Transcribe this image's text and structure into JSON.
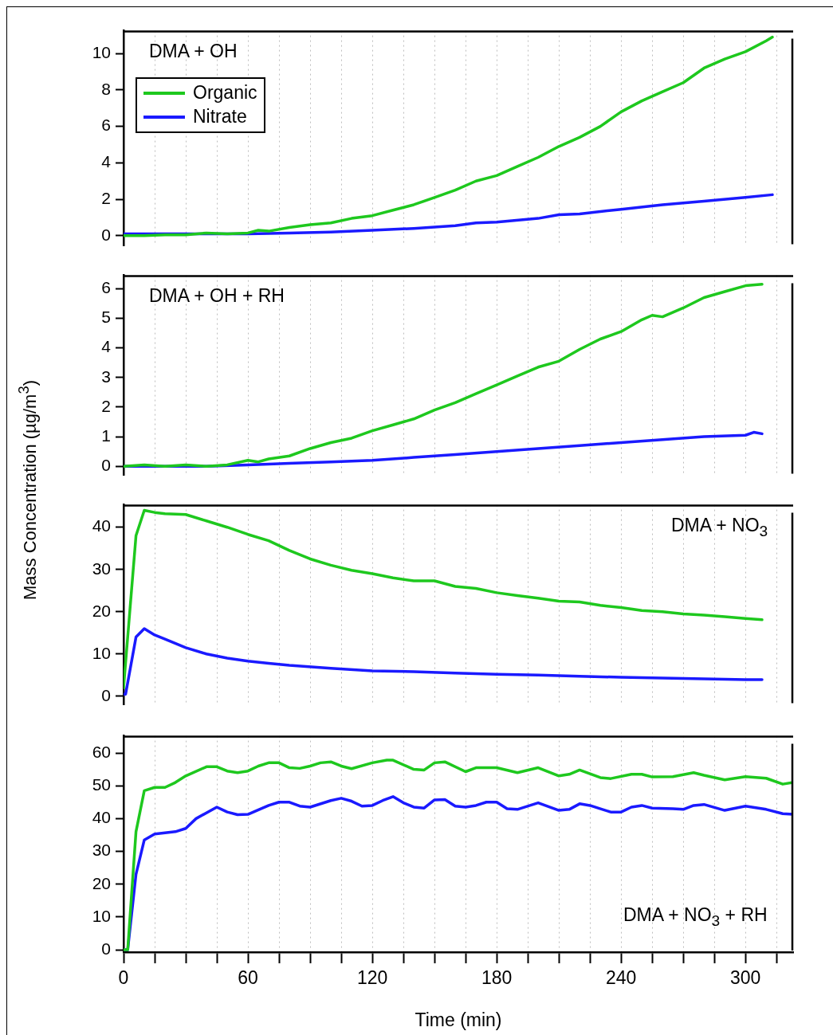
{
  "chart_data": [
    {
      "type": "line",
      "annotations": [
        "DMA + OH"
      ],
      "legend": "top left",
      "grid": "x",
      "tick_labels": "y",
      "xlim": [
        0,
        323
      ],
      "ylim": [
        -0.55,
        11.25
      ],
      "yticks": [
        0,
        2,
        4,
        6,
        8,
        10
      ],
      "xticks": [
        0,
        {
          "value": 15,
          "label": null
        },
        {
          "value": 30,
          "label": null
        },
        {
          "value": 45,
          "label": null
        },
        60,
        {
          "value": 75,
          "label": null
        },
        {
          "value": 90,
          "label": null
        },
        {
          "value": 105,
          "label": null
        },
        120,
        {
          "value": 135,
          "label": null
        },
        {
          "value": 150,
          "label": null
        },
        {
          "value": 165,
          "label": null
        },
        180,
        {
          "value": 195,
          "label": null
        },
        {
          "value": 210,
          "label": null
        },
        {
          "value": 225,
          "label": null
        },
        240,
        {
          "value": 255,
          "label": null
        },
        {
          "value": 270,
          "label": null
        },
        {
          "value": 285,
          "label": null
        },
        300,
        {
          "value": 315,
          "label": null
        }
      ],
      "series": [
        {
          "name": "Organic",
          "color": "#1ec81e",
          "x": [
            0,
            10,
            20,
            30,
            40,
            50,
            60,
            65,
            70,
            80,
            90,
            100,
            110,
            120,
            130,
            140,
            150,
            160,
            170,
            180,
            190,
            200,
            210,
            220,
            230,
            240,
            250,
            260,
            270,
            280,
            290,
            300,
            310,
            313
          ],
          "values": [
            0,
            0,
            0.05,
            0.05,
            0.15,
            0.1,
            0.15,
            0.3,
            0.25,
            0.45,
            0.6,
            0.7,
            0.95,
            1.1,
            1.4,
            1.7,
            2.1,
            2.5,
            3.0,
            3.3,
            3.8,
            4.3,
            4.9,
            5.4,
            6.0,
            6.8,
            7.4,
            7.9,
            8.4,
            9.2,
            9.7,
            10.1,
            10.7,
            10.9
          ]
        },
        {
          "name": "Nitrate",
          "color": "#1a1aff",
          "x": [
            0,
            40,
            60,
            80,
            100,
            120,
            140,
            160,
            170,
            180,
            200,
            210,
            220,
            240,
            260,
            280,
            300,
            313
          ],
          "values": [
            0.1,
            0.1,
            0.1,
            0.15,
            0.2,
            0.3,
            0.4,
            0.55,
            0.7,
            0.75,
            0.95,
            1.15,
            1.2,
            1.45,
            1.7,
            1.9,
            2.1,
            2.25
          ]
        }
      ]
    },
    {
      "type": "line",
      "annotations": [
        "DMA + OH + RH"
      ],
      "grid": "x",
      "tick_labels": "y",
      "ylabel": "Mass Concentration (µg/m$^{3}$)",
      "xlim": [
        0,
        323
      ],
      "ylim": [
        -0.3,
        6.45
      ],
      "yticks": [
        0,
        1,
        2,
        3,
        4,
        5,
        6
      ],
      "xticks": [
        0,
        {
          "value": 15,
          "label": null
        },
        {
          "value": 30,
          "label": null
        },
        {
          "value": 45,
          "label": null
        },
        60,
        {
          "value": 75,
          "label": null
        },
        {
          "value": 90,
          "label": null
        },
        {
          "value": 105,
          "label": null
        },
        120,
        {
          "value": 135,
          "label": null
        },
        {
          "value": 150,
          "label": null
        },
        {
          "value": 165,
          "label": null
        },
        180,
        {
          "value": 195,
          "label": null
        },
        {
          "value": 210,
          "label": null
        },
        {
          "value": 225,
          "label": null
        },
        240,
        {
          "value": 255,
          "label": null
        },
        {
          "value": 270,
          "label": null
        },
        {
          "value": 285,
          "label": null
        },
        300,
        {
          "value": 315,
          "label": null
        }
      ],
      "series": [
        {
          "color": "#1ec81e",
          "x": [
            0,
            10,
            20,
            30,
            40,
            50,
            60,
            65,
            70,
            80,
            90,
            100,
            110,
            120,
            130,
            140,
            150,
            160,
            170,
            180,
            190,
            200,
            210,
            220,
            230,
            240,
            250,
            255,
            260,
            270,
            280,
            290,
            300,
            308
          ],
          "values": [
            0,
            0.05,
            0,
            0.05,
            0,
            0.05,
            0.2,
            0.15,
            0.25,
            0.35,
            0.6,
            0.8,
            0.95,
            1.2,
            1.4,
            1.6,
            1.9,
            2.15,
            2.45,
            2.75,
            3.05,
            3.35,
            3.55,
            3.95,
            4.3,
            4.55,
            4.95,
            5.1,
            5.05,
            5.35,
            5.7,
            5.9,
            6.1,
            6.15
          ]
        },
        {
          "color": "#1a1aff",
          "x": [
            0,
            40,
            60,
            80,
            100,
            120,
            140,
            160,
            180,
            200,
            220,
            240,
            260,
            280,
            300,
            304,
            308
          ],
          "values": [
            0,
            0,
            0.05,
            0.1,
            0.15,
            0.2,
            0.3,
            0.4,
            0.5,
            0.6,
            0.7,
            0.8,
            0.9,
            1.0,
            1.05,
            1.15,
            1.1
          ]
        }
      ]
    },
    {
      "type": "line",
      "annotations": [
        "DMA + NO$_{3}$"
      ],
      "grid": "x",
      "tick_labels": "y",
      "xlim": [
        0,
        323
      ],
      "ylim": [
        -2,
        45.3
      ],
      "yticks": [
        0,
        10,
        20,
        30,
        40
      ],
      "xticks": [
        0,
        {
          "value": 15,
          "label": null
        },
        {
          "value": 30,
          "label": null
        },
        {
          "value": 45,
          "label": null
        },
        60,
        {
          "value": 75,
          "label": null
        },
        {
          "value": 90,
          "label": null
        },
        {
          "value": 105,
          "label": null
        },
        120,
        {
          "value": 135,
          "label": null
        },
        {
          "value": 150,
          "label": null
        },
        {
          "value": 165,
          "label": null
        },
        180,
        {
          "value": 195,
          "label": null
        },
        {
          "value": 210,
          "label": null
        },
        {
          "value": 225,
          "label": null
        },
        240,
        {
          "value": 255,
          "label": null
        },
        {
          "value": 270,
          "label": null
        },
        {
          "value": 285,
          "label": null
        },
        300,
        {
          "value": 315,
          "label": null
        }
      ],
      "series": [
        {
          "color": "#1ec81e",
          "x": [
            0,
            6,
            10,
            15,
            20,
            30,
            40,
            50,
            60,
            70,
            80,
            90,
            100,
            110,
            120,
            130,
            140,
            150,
            160,
            170,
            180,
            190,
            200,
            210,
            220,
            230,
            240,
            250,
            260,
            270,
            280,
            290,
            300,
            308
          ],
          "values": [
            2,
            38,
            44,
            43.5,
            43.2,
            43,
            41.5,
            40,
            38.3,
            36.8,
            34.5,
            32.5,
            31,
            29.8,
            29,
            28,
            27.3,
            27.3,
            26,
            25.5,
            24.5,
            23.8,
            23.2,
            22.5,
            22.3,
            21.5,
            21,
            20.3,
            20,
            19.5,
            19.2,
            18.8,
            18.4,
            18.1
          ]
        },
        {
          "color": "#1a1aff",
          "x": [
            0,
            1,
            6,
            10,
            15,
            20,
            30,
            40,
            50,
            60,
            70,
            80,
            100,
            120,
            140,
            160,
            180,
            200,
            220,
            240,
            260,
            280,
            300,
            308
          ],
          "values": [
            0.5,
            0.5,
            14,
            16,
            14.5,
            13.5,
            11.5,
            10,
            9,
            8.3,
            7.8,
            7.3,
            6.6,
            6,
            5.8,
            5.5,
            5.2,
            5,
            4.7,
            4.5,
            4.3,
            4.1,
            3.9,
            3.9
          ]
        }
      ]
    },
    {
      "type": "line",
      "annotations": [
        "DMA + NO$_{3}$ + RH"
      ],
      "grid": "x",
      "xlabel": "Time (min)",
      "xlim": [
        0,
        323
      ],
      "ylim": [
        -0.7,
        65.2
      ],
      "yticks": [
        0,
        10,
        20,
        30,
        40,
        50,
        60
      ],
      "xticks": [
        0,
        {
          "value": 15,
          "label": null
        },
        {
          "value": 30,
          "label": null
        },
        {
          "value": 45,
          "label": null
        },
        60,
        {
          "value": 75,
          "label": null
        },
        {
          "value": 90,
          "label": null
        },
        {
          "value": 105,
          "label": null
        },
        120,
        {
          "value": 135,
          "label": null
        },
        {
          "value": 150,
          "label": null
        },
        {
          "value": 165,
          "label": null
        },
        180,
        {
          "value": 195,
          "label": null
        },
        {
          "value": 210,
          "label": null
        },
        {
          "value": 225,
          "label": null
        },
        240,
        {
          "value": 255,
          "label": null
        },
        {
          "value": 270,
          "label": null
        },
        {
          "value": 285,
          "label": null
        },
        300,
        {
          "value": 315,
          "label": null
        }
      ],
      "series": [
        {
          "color": "#1ec81e",
          "x": [
            0,
            2,
            6,
            10,
            15,
            20,
            25,
            30,
            40,
            45,
            50,
            55,
            60,
            65,
            70,
            75,
            80,
            85,
            90,
            95,
            100,
            105,
            110,
            120,
            127,
            130,
            140,
            145,
            150,
            155,
            165,
            170,
            180,
            190,
            200,
            210,
            215,
            220,
            230,
            235,
            245,
            250,
            255,
            265,
            275,
            280,
            290,
            300,
            310,
            318,
            323
          ],
          "values": [
            0,
            0,
            36,
            48.5,
            49.5,
            49.5,
            51,
            53,
            55.8,
            55.8,
            54.5,
            54,
            54.5,
            56,
            57,
            57,
            55.5,
            55.3,
            56,
            57,
            57.3,
            56,
            55.2,
            57,
            57.8,
            57.8,
            55,
            54.8,
            57,
            57.3,
            54.3,
            55.5,
            55.5,
            54,
            55.5,
            53,
            53.5,
            54.8,
            52.5,
            52.2,
            53.5,
            53.5,
            52.7,
            52.8,
            54,
            53.2,
            51.8,
            52.8,
            52.3,
            50.5,
            51
          ]
        },
        {
          "color": "#1a1aff",
          "x": [
            0,
            2,
            6,
            10,
            15,
            25,
            30,
            35,
            45,
            50,
            55,
            60,
            70,
            75,
            80,
            85,
            90,
            100,
            105,
            110,
            115,
            120,
            125,
            130,
            135,
            140,
            145,
            150,
            155,
            160,
            165,
            170,
            175,
            180,
            185,
            190,
            200,
            210,
            215,
            220,
            225,
            235,
            240,
            245,
            250,
            255,
            265,
            270,
            275,
            280,
            290,
            300,
            310,
            318,
            323
          ],
          "values": [
            0,
            0,
            23,
            33.5,
            35.3,
            36,
            37,
            40,
            43.5,
            42,
            41.2,
            41.3,
            44,
            45,
            45,
            43.8,
            43.5,
            45.5,
            46.2,
            45.3,
            43.8,
            44,
            45.5,
            46.7,
            44.8,
            43.5,
            43.2,
            45.7,
            45.8,
            43.8,
            43.5,
            44,
            45,
            45,
            43,
            42.8,
            44.8,
            42.5,
            42.8,
            44.5,
            44,
            42,
            42,
            43.5,
            44,
            43.2,
            43,
            42.8,
            44,
            44.3,
            42.5,
            43.8,
            42.8,
            41.5,
            41.3
          ]
        }
      ]
    }
  ]
}
